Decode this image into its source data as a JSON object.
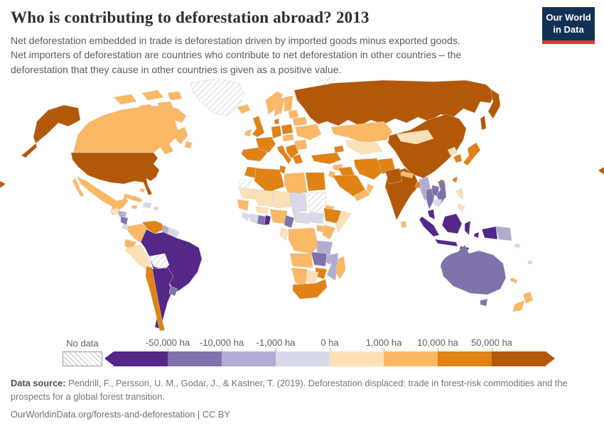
{
  "header": {
    "title": "Who is contributing to deforestation abroad? 2013",
    "subtitle_lines": [
      "Net deforestation embedded in trade is deforestation driven by imported goods minus exported goods.",
      "Net importers of deforestation are countries who contribute to net deforestation in other countries – the",
      "deforestation that they cause in other countries is given as a positive value."
    ],
    "logo": {
      "line1": "Our World",
      "line2": "in Data",
      "bg_color": "#123155",
      "accent_color": "#dc3c33"
    }
  },
  "legend": {
    "no_data_label": "No data",
    "tick_labels": [
      "-50,000 ha",
      "-10,000 ha",
      "-1,000 ha",
      "0 ha",
      "1,000 ha",
      "10,000 ha",
      "50,000 ha"
    ]
  },
  "footer": {
    "source_label": "Data source:",
    "source_line1_rest": " Pendrill, F., Persson, U. M., Godar, J., & Kastner, T. (2019). Deforestation displaced: trade in forest-risk commodities and the",
    "source_line2": "prospects for a global forest transition.",
    "link_line": "OurWorldinData.org/forests-and-deforestation | CC BY"
  },
  "chart_data": {
    "type": "choropleth",
    "title": "Who is contributing to deforestation abroad?",
    "year": 2013,
    "unit": "ha",
    "legend_position": "bottom",
    "bins": [
      {
        "range": "below -50,000 ha",
        "color": "#542788"
      },
      {
        "range": "-50,000 to -10,000 ha",
        "color": "#8073ac"
      },
      {
        "range": "-10,000 to -1,000 ha",
        "color": "#b2abd2"
      },
      {
        "range": "-1,000 to 0 ha",
        "color": "#d8daeb"
      },
      {
        "range": "0 to 1,000 ha",
        "color": "#fee0b6"
      },
      {
        "range": "1,000 to 10,000 ha",
        "color": "#fdb863"
      },
      {
        "range": "10,000 to 50,000 ha",
        "color": "#e08214"
      },
      {
        "range": "above 50,000 ha",
        "color": "#b35806"
      }
    ],
    "no_data_value": -1,
    "countries": {
      "united-states": 7,
      "canada": 5,
      "greenland": -1,
      "mexico": 5,
      "guatemala": 4,
      "honduras": 2,
      "nicaragua": 1,
      "costa-rica-panama": 3,
      "cuba": 5,
      "bahamas": 5,
      "jamaica": 5,
      "hispaniola": 3,
      "puerto-rico": 3,
      "colombia": 5,
      "venezuela": 6,
      "guyana": 2,
      "suriname": 3,
      "french-guiana": 3,
      "ecuador": 5,
      "peru": 4,
      "brazil": 0,
      "bolivia": -1,
      "paraguay": 0,
      "argentina": 0,
      "uruguay": 1,
      "chile": 6,
      "iceland": 5,
      "ireland": 5,
      "united-kingdom": 6,
      "spain-portugal": 6,
      "france": 6,
      "norway": 5,
      "sweden": 5,
      "finland": 5,
      "denmark": 6,
      "germany": 6,
      "poland": 6,
      "czech-slovakia-hungary": 5,
      "balkans": 6,
      "greece": 6,
      "italy": 6,
      "romania-bulgaria": 5,
      "ukraine": 5,
      "belarus": 5,
      "baltics": 5,
      "svalbard": -1,
      "russia": 7,
      "kazakhstan": 5,
      "uzbekistan-turkmenistan": 4,
      "caucasus": 6,
      "turkey": 6,
      "syria": 5,
      "iraq": 6,
      "jordan-israel": 5,
      "saudi-arabia": 6,
      "yemen": 5,
      "oman": 5,
      "iran": 6,
      "afghanistan": 6,
      "pakistan": 7,
      "morocco": 6,
      "western-sahara": -1,
      "algeria": 6,
      "tunisia": 6,
      "libya": 5,
      "egypt": 6,
      "mauritania": 4,
      "mali": 4,
      "niger": 4,
      "chad": 3,
      "sudan": -1,
      "eritrea": 5,
      "senegal-guinea": 5,
      "sierra-leone-liberia": 3,
      "cote-divoire": 3,
      "ghana": 1,
      "togo-benin": 0,
      "burkina-faso": 4,
      "nigeria": 5,
      "cameroon": 1,
      "central-african-republic": 3,
      "south-sudan": 3,
      "ethiopia": 6,
      "somalia": 4,
      "uganda": 5,
      "kenya": 5,
      "gabon-congo": 4,
      "dr-congo": 5,
      "tanzania": 2,
      "angola": 5,
      "zambia": 1,
      "malawi": 2,
      "mozambique": 2,
      "zimbabwe": 6,
      "botswana": 4,
      "namibia": 5,
      "south-africa": 6,
      "madagascar": 5,
      "china": 7,
      "mongolia": 4,
      "north-korea": 4,
      "south-korea": 6,
      "japan": 6,
      "taiwan": 6,
      "india": 7,
      "nepal": 5,
      "bangladesh": 6,
      "sri-lanka": 5,
      "myanmar": 2,
      "thailand": 1,
      "laos": 1,
      "vietnam": 1,
      "cambodia": 3,
      "malaysia": 0,
      "indonesia": 0,
      "philippines": 4,
      "papua-new-guinea": 2,
      "solomon-islands": 3,
      "fiji": 3,
      "australia": 1,
      "new-zealand": 5,
      "new-caledonia": 5
    }
  }
}
